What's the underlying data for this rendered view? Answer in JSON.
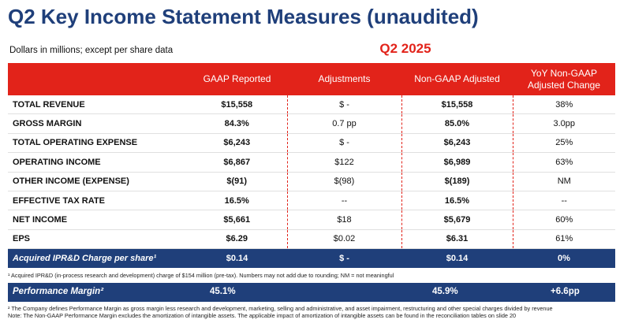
{
  "title": "Q2 Key Income Statement Measures (unaudited)",
  "subtitle": "Dollars in millions; except per share data",
  "period": "Q2 2025",
  "columns": [
    "",
    "GAAP Reported",
    "Adjustments",
    "Non-GAAP Adjusted",
    "YoY Non-GAAP Adjusted Change"
  ],
  "rows": [
    {
      "label": "TOTAL REVENUE",
      "gaap": "$15,558",
      "adj": "$ -",
      "nongaap": "$15,558",
      "yoy": "38%"
    },
    {
      "label": "GROSS MARGIN",
      "gaap": "84.3%",
      "adj": "0.7 pp",
      "nongaap": "85.0%",
      "yoy": "3.0pp"
    },
    {
      "label": "TOTAL OPERATING EXPENSE",
      "gaap": "$6,243",
      "adj": "$ -",
      "nongaap": "$6,243",
      "yoy": "25%"
    },
    {
      "label": "OPERATING INCOME",
      "gaap": "$6,867",
      "adj": "$122",
      "nongaap": "$6,989",
      "yoy": "63%"
    },
    {
      "label": "OTHER INCOME (EXPENSE)",
      "gaap": "$(91)",
      "adj": "$(98)",
      "nongaap": "$(189)",
      "yoy": "NM"
    },
    {
      "label": "EFFECTIVE TAX RATE",
      "gaap": "16.5%",
      "adj": "--",
      "nongaap": "16.5%",
      "yoy": "--"
    },
    {
      "label": "NET INCOME",
      "gaap": "$5,661",
      "adj": "$18",
      "nongaap": "$5,679",
      "yoy": "60%"
    },
    {
      "label": "EPS",
      "gaap": "$6.29",
      "adj": "$0.02",
      "nongaap": "$6.31",
      "yoy": "61%"
    }
  ],
  "iprd_row": {
    "label": "Acquired IPR&D Charge per share¹",
    "gaap": "$0.14",
    "adj": "$ -",
    "nongaap": "$0.14",
    "yoy": "0%"
  },
  "footnote1": "¹ Acquired IPR&D (in-process research and development) charge of $154 million (pre-tax). Numbers may not add due to rounding; NM = not meaningful",
  "performance_margin": {
    "label": "Performance Margin²",
    "gaap": "45.1%",
    "nongaap": "45.9%",
    "yoy": "+6.6pp"
  },
  "footnote2": "² The Company defines Performance Margin as gross margin less research and development, marketing, selling and administrative, and asset impairment, restructuring and other special charges divided by revenue",
  "footnote3": "Note: The Non-GAAP Performance Margin excludes the amortization of intangible assets. The applicable impact of amortization of intangible assets can be found in the reconciliation tables on slide 20",
  "colors": {
    "brand_red": "#e2231a",
    "navy": "#1f3f7a"
  }
}
